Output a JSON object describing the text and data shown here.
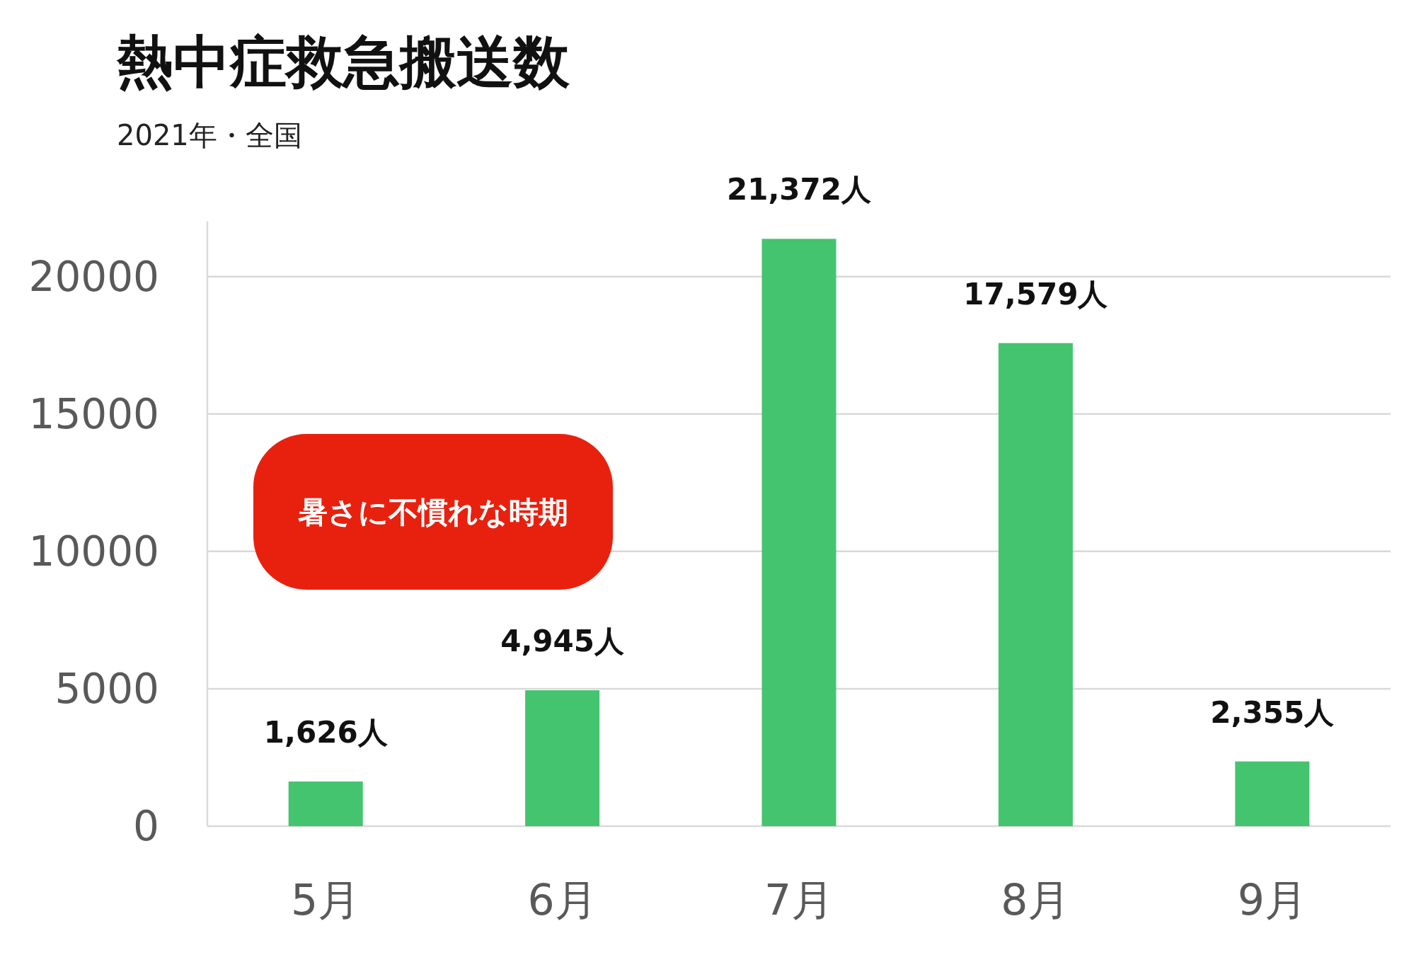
{
  "chart_data": {
    "type": "bar",
    "title": "熱中症救急搬送数",
    "subtitle": "2021年・全国",
    "categories": [
      "5月",
      "6月",
      "7月",
      "8月",
      "9月"
    ],
    "values": [
      1626,
      4945,
      21372,
      17579,
      2355
    ],
    "value_labels": [
      "1,626人",
      "4,945人",
      "21,372人",
      "17,579人",
      "2,355人"
    ],
    "color": "#44c46e",
    "ylim": [
      0,
      22000
    ],
    "yticks": [
      0,
      5000,
      10000,
      15000,
      20000
    ],
    "grid": "y",
    "annotations": [
      "暑さに不慣れな時期"
    ]
  }
}
